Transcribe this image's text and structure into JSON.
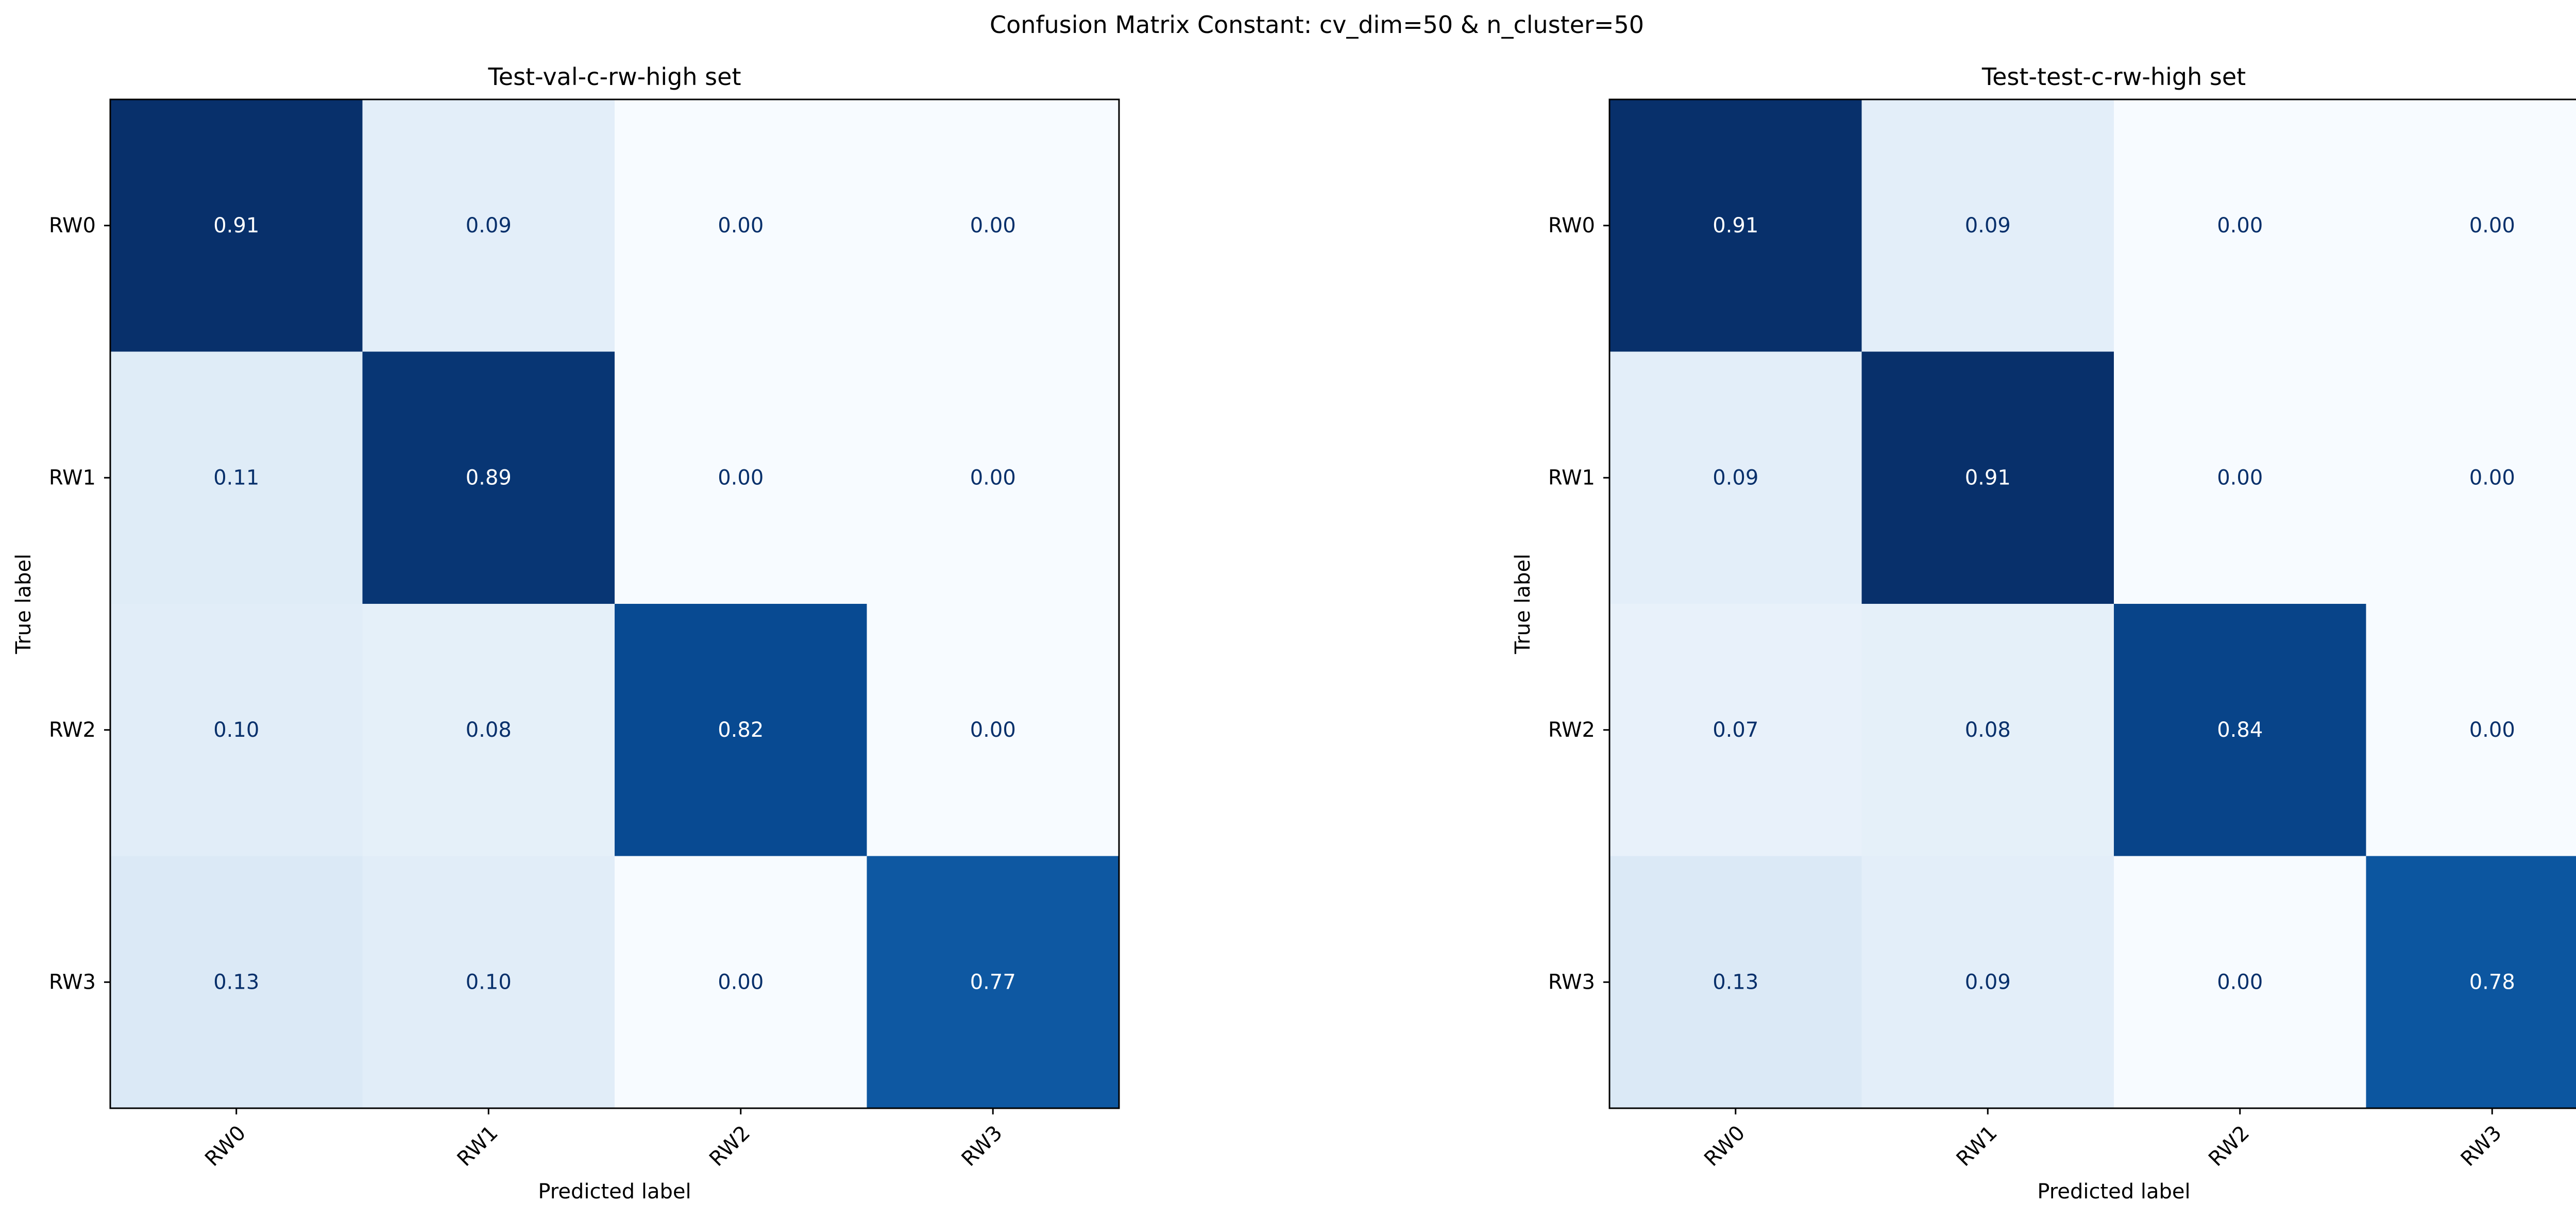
{
  "figure": {
    "title": "Confusion Matrix Constant: cv_dim=50 & n_cluster=50"
  },
  "chart_data": [
    {
      "type": "heatmap",
      "title": "Test-val-c-rw-high set",
      "xlabel": "Predicted label",
      "ylabel": "True label",
      "x_categories": [
        "RW0",
        "RW1",
        "RW2",
        "RW3"
      ],
      "y_categories": [
        "RW0",
        "RW1",
        "RW2",
        "RW3"
      ],
      "values": [
        [
          0.91,
          0.09,
          0.0,
          0.0
        ],
        [
          0.11,
          0.89,
          0.0,
          0.0
        ],
        [
          0.1,
          0.08,
          0.82,
          0.0
        ],
        [
          0.13,
          0.1,
          0.0,
          0.77
        ]
      ],
      "value_format": "0.00",
      "colormap": "Blues",
      "grid": false,
      "colorbar": false
    },
    {
      "type": "heatmap",
      "title": "Test-test-c-rw-high set",
      "xlabel": "Predicted label",
      "ylabel": "True label",
      "x_categories": [
        "RW0",
        "RW1",
        "RW2",
        "RW3"
      ],
      "y_categories": [
        "RW0",
        "RW1",
        "RW2",
        "RW3"
      ],
      "values": [
        [
          0.91,
          0.09,
          0.0,
          0.0
        ],
        [
          0.09,
          0.91,
          0.0,
          0.0
        ],
        [
          0.07,
          0.08,
          0.84,
          0.0
        ],
        [
          0.13,
          0.09,
          0.0,
          0.78
        ]
      ],
      "value_format": "0.00",
      "colormap": "Blues",
      "grid": false,
      "colorbar": false
    }
  ],
  "colors": {
    "low": "#f7fbff",
    "high": "#08306b",
    "text_dark": "#08306b",
    "text_light": "#ffffff",
    "axes": "#000000"
  }
}
